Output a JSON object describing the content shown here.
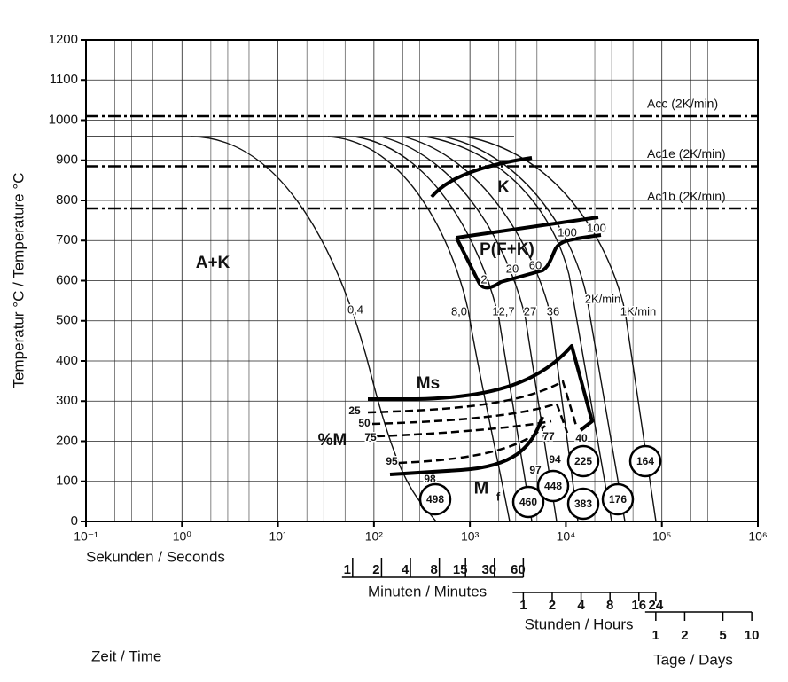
{
  "chart_data": {
    "type": "cct",
    "ylabel": "Temperatur °C / Temperature °C",
    "xlabel": "Sekunden / Seconds",
    "time_label": "Zeit / Time",
    "xlog": true,
    "xlim": [
      0.1,
      1000000
    ],
    "xticks": [
      {
        "value": 0.1,
        "label": "10⁻¹"
      },
      {
        "value": 1,
        "label": "10⁰"
      },
      {
        "value": 10,
        "label": "10¹"
      },
      {
        "value": 100,
        "label": "10²"
      },
      {
        "value": 1000,
        "label": "10³"
      },
      {
        "value": 10000,
        "label": "10⁴"
      },
      {
        "value": 100000,
        "label": "10⁵"
      },
      {
        "value": 1000000,
        "label": "10⁶"
      }
    ],
    "ylim": [
      0,
      1200
    ],
    "yticks": [
      0,
      100,
      200,
      300,
      400,
      500,
      600,
      700,
      800,
      900,
      1000,
      1100,
      1200
    ],
    "grid": true,
    "secondary_axes": [
      {
        "label": "Minuten / Minutes",
        "ticks": [
          1,
          2,
          4,
          8,
          15,
          30,
          60
        ]
      },
      {
        "label": "Stunden / Hours",
        "ticks": [
          1,
          2,
          4,
          8,
          16,
          24
        ]
      },
      {
        "label": "Tage / Days",
        "ticks": [
          1,
          2,
          5,
          10
        ]
      }
    ],
    "reference_lines": [
      {
        "name": "Acc (2K/min)",
        "value": 1010
      },
      {
        "name": "Ac1e (2K/min)",
        "value": 885
      },
      {
        "name": "Ac1b (2K/min)",
        "value": 780
      }
    ],
    "annotations": [
      "A+K",
      "K",
      "P(F+K)",
      "Ms",
      "%M",
      "M",
      "f"
    ],
    "curve_labels": [
      "0,4",
      "8,0",
      "12,7",
      "27",
      "36",
      "2K/min",
      "1K/min",
      "100",
      "100",
      "2",
      "20",
      "60"
    ],
    "martensite_labels": [
      "25",
      "50",
      "75",
      "95",
      "98",
      "97",
      "94",
      "77",
      "40"
    ],
    "hardness": [
      498,
      460,
      448,
      383,
      225,
      176,
      164
    ]
  }
}
